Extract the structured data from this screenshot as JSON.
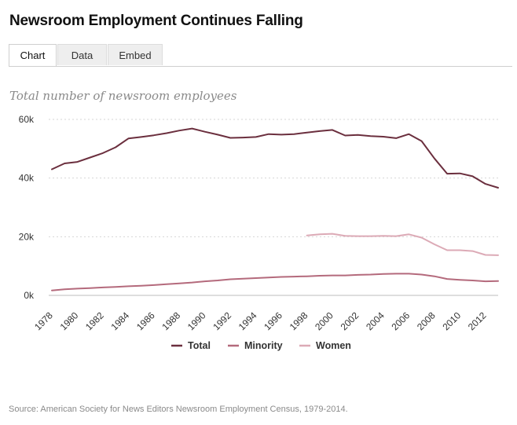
{
  "title": "Newsroom Employment Continues Falling",
  "tabs": [
    {
      "label": "Chart",
      "active": true
    },
    {
      "label": "Data",
      "active": false
    },
    {
      "label": "Embed",
      "active": false
    }
  ],
  "source": "Source: American Society for News Editors Newsroom Employment Census, 1979-2014.",
  "colors": {
    "total": "#6b2f3e",
    "minority": "#b46a7c",
    "women": "#dcaab6"
  },
  "chart_data": {
    "type": "line",
    "subtitle": "Total number of newsroom employees",
    "y_ticks": [
      0,
      20000,
      40000,
      60000
    ],
    "y_tick_labels": [
      "0k",
      "20k",
      "40k",
      "60k"
    ],
    "x_ticks": [
      "1978",
      "1980",
      "1982",
      "1984",
      "1986",
      "1988",
      "1990",
      "1992",
      "1994",
      "1996",
      "1998",
      "2000",
      "2002",
      "2004",
      "2006",
      "2008",
      "2010",
      "2012"
    ],
    "ylim": [
      0,
      60000
    ],
    "xlim": [
      1978,
      2013
    ],
    "grid": true,
    "legend_position": "bottom",
    "series": [
      {
        "name": "Total",
        "color": "#6b2f3e",
        "x": [
          1978,
          1979,
          1980,
          1981,
          1982,
          1983,
          1984,
          1985,
          1986,
          1987,
          1988,
          1989,
          1990,
          1991,
          1992,
          1993,
          1994,
          1995,
          1996,
          1997,
          1998,
          1999,
          2000,
          2001,
          2002,
          2003,
          2004,
          2005,
          2006,
          2007,
          2008,
          2009,
          2010,
          2011,
          2012,
          2013
        ],
        "values": [
          43000,
          45000,
          45500,
          47000,
          48500,
          50500,
          53500,
          54000,
          54600,
          55300,
          56200,
          56900,
          55800,
          54800,
          53700,
          53800,
          54000,
          55000,
          54800,
          55000,
          55500,
          56000,
          56400,
          54500,
          54700,
          54300,
          54100,
          53600,
          55000,
          52600,
          46700,
          41500,
          41600,
          40600,
          38000,
          36700
        ]
      },
      {
        "name": "Minority",
        "color": "#b46a7c",
        "x": [
          1978,
          1979,
          1980,
          1981,
          1982,
          1983,
          1984,
          1985,
          1986,
          1987,
          1988,
          1989,
          1990,
          1991,
          1992,
          1993,
          1994,
          1995,
          1996,
          1997,
          1998,
          1999,
          2000,
          2001,
          2002,
          2003,
          2004,
          2005,
          2006,
          2007,
          2008,
          2009,
          2010,
          2011,
          2012,
          2013
        ],
        "values": [
          1700,
          2100,
          2300,
          2500,
          2700,
          2900,
          3100,
          3300,
          3500,
          3800,
          4100,
          4400,
          4800,
          5100,
          5500,
          5700,
          5900,
          6100,
          6300,
          6400,
          6500,
          6700,
          6800,
          6800,
          7000,
          7100,
          7300,
          7400,
          7400,
          7100,
          6500,
          5600,
          5300,
          5100,
          4800,
          4900
        ]
      },
      {
        "name": "Women",
        "color": "#dcaab6",
        "x": [
          1998,
          1999,
          2000,
          2001,
          2002,
          2003,
          2004,
          2005,
          2006,
          2007,
          2008,
          2009,
          2010,
          2011,
          2012,
          2013
        ],
        "values": [
          20400,
          20800,
          21000,
          20300,
          20200,
          20200,
          20300,
          20200,
          20800,
          19700,
          17400,
          15400,
          15400,
          15100,
          13800,
          13700
        ]
      }
    ]
  }
}
